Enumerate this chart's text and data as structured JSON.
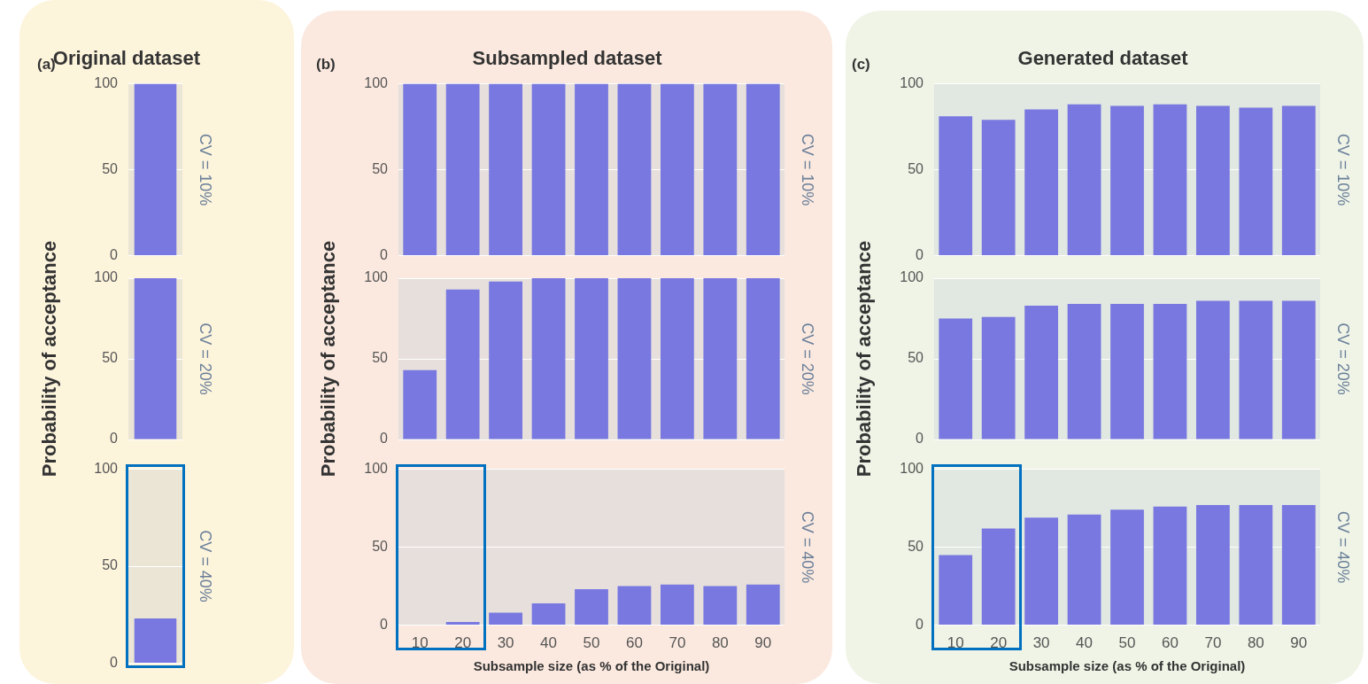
{
  "chart_data": [
    {
      "type": "bar",
      "title": "Original dataset",
      "annotations": [
        "(a)"
      ],
      "categories": [
        null
      ],
      "values": [
        100
      ],
      "color": "#7878e0",
      "ylim": [
        0,
        100
      ],
      "yticks": [
        0,
        50,
        100
      ],
      "grid": "y",
      "tick_labels": "y",
      "y2label": "CV = 10%"
    },
    {
      "type": "bar",
      "categories": [
        null
      ],
      "values": [
        100
      ],
      "color": "#7878e0",
      "ylim": [
        0,
        100
      ],
      "yticks": [
        0,
        50,
        100
      ],
      "grid": "y",
      "tick_labels": "y",
      "ylabel": "Probability of acceptance",
      "y2label": "CV = 20%"
    },
    {
      "type": "bar",
      "categories": [
        null
      ],
      "values": [
        23
      ],
      "color": "#7878e0",
      "ylim": [
        0,
        100
      ],
      "yticks": [
        0,
        50,
        100
      ],
      "grid": "y",
      "tick_labels": "y",
      "y2label": "CV = 40%"
    },
    {
      "type": "bar",
      "title": "Subsampled dataset",
      "annotations": [
        "(b)"
      ],
      "categories": [
        "10",
        "20",
        "30",
        "40",
        "50",
        "60",
        "70",
        "80",
        "90"
      ],
      "values": [
        100,
        100,
        100,
        100,
        100,
        100,
        100,
        100,
        100
      ],
      "color": "#7878e0",
      "ylim": [
        0,
        100
      ],
      "yticks": [
        0,
        50,
        100
      ],
      "grid": "y",
      "tick_labels": "y",
      "y2label": "CV = 10%"
    },
    {
      "type": "bar",
      "categories": [
        "10",
        "20",
        "30",
        "40",
        "50",
        "60",
        "70",
        "80",
        "90"
      ],
      "values": [
        43,
        93,
        98,
        100,
        100,
        100,
        100,
        100,
        100
      ],
      "color": "#7878e0",
      "ylim": [
        0,
        100
      ],
      "yticks": [
        0,
        50,
        100
      ],
      "grid": "y",
      "tick_labels": "y",
      "ylabel": "Probability of acceptance",
      "y2label": "CV = 20%"
    },
    {
      "type": "bar",
      "categories": [
        "10",
        "20",
        "30",
        "40",
        "50",
        "60",
        "70",
        "80",
        "90"
      ],
      "values": [
        0,
        2,
        8,
        14,
        23,
        25,
        26,
        25,
        26
      ],
      "color": "#7878e0",
      "ylim": [
        0,
        100
      ],
      "yticks": [
        0,
        50,
        100
      ],
      "grid": "y",
      "xlabel": "Subsample size (as % of the Original)",
      "y2label": "CV = 40%"
    },
    {
      "type": "bar",
      "title": "Generated dataset",
      "annotations": [
        "(c)"
      ],
      "categories": [
        "10",
        "20",
        "30",
        "40",
        "50",
        "60",
        "70",
        "80",
        "90"
      ],
      "values": [
        81,
        79,
        85,
        88,
        87,
        88,
        87,
        86,
        87
      ],
      "color": "#7878e0",
      "ylim": [
        0,
        100
      ],
      "yticks": [
        0,
        50,
        100
      ],
      "grid": "y",
      "tick_labels": "y",
      "y2label": "CV = 10%"
    },
    {
      "type": "bar",
      "categories": [
        "10",
        "20",
        "30",
        "40",
        "50",
        "60",
        "70",
        "80",
        "90"
      ],
      "values": [
        75,
        76,
        83,
        84,
        84,
        84,
        86,
        86,
        86
      ],
      "color": "#7878e0",
      "ylim": [
        0,
        100
      ],
      "yticks": [
        0,
        50,
        100
      ],
      "grid": "y",
      "tick_labels": "y",
      "ylabel": "Probability of acceptance",
      "y2label": "CV = 20%"
    },
    {
      "type": "bar",
      "categories": [
        "10",
        "20",
        "30",
        "40",
        "50",
        "60",
        "70",
        "80",
        "90"
      ],
      "values": [
        45,
        62,
        69,
        71,
        74,
        76,
        77,
        77,
        77
      ],
      "color": "#7878e0",
      "ylim": [
        0,
        100
      ],
      "yticks": [
        0,
        50,
        100
      ],
      "grid": "y",
      "xlabel": "Subsample size (as % of the Original)",
      "y2label": "CV = 40%"
    }
  ]
}
